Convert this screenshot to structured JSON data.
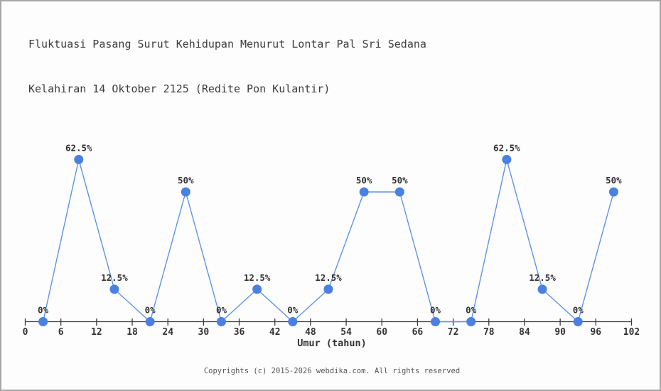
{
  "title": {
    "line1": "Fluktuasi Pasang Surut Kehidupan Menurut Lontar Pal Sri Sedana",
    "line2": "Kelahiran 14 Oktober 2125 (Redite Pon Kulantir)"
  },
  "chart_data": {
    "type": "line",
    "title": "Fluktuasi Pasang Surut Kehidupan Menurut Lontar Pal Sri Sedana Kelahiran 14 Oktober 2125 (Redite Pon Kulantir)",
    "xlabel": "Umur (tahun)",
    "ylabel": "",
    "x": [
      3,
      9,
      15,
      21,
      27,
      33,
      39,
      45,
      51,
      57,
      63,
      69,
      75,
      81,
      87,
      93,
      99
    ],
    "values": [
      0,
      62.5,
      12.5,
      0,
      50,
      0,
      12.5,
      0,
      12.5,
      50,
      50,
      0,
      0,
      62.5,
      12.5,
      0,
      50
    ],
    "point_labels": [
      "0%",
      "62.5%",
      "12.5%",
      "0%",
      "50%",
      "0%",
      "12.5%",
      "0%",
      "12.5%",
      "50%",
      "50%",
      "0%",
      "0%",
      "62.5%",
      "12.5%",
      "0%",
      "50%"
    ],
    "x_ticks": [
      0,
      6,
      12,
      18,
      24,
      30,
      36,
      42,
      48,
      54,
      60,
      66,
      72,
      78,
      84,
      90,
      96,
      102
    ],
    "xlim": [
      0,
      102
    ],
    "ylim": [
      0,
      100
    ],
    "grid": false,
    "legend": "none",
    "colors": {
      "line": "#5e94e4",
      "marker": "#4a80e1",
      "axis": "#3a3a3a",
      "tick_label": "#333333",
      "point_label": "#333333"
    }
  },
  "footer": {
    "copyright": "Copyrights (c) 2015-2026 webdika.com. All rights reserved"
  }
}
